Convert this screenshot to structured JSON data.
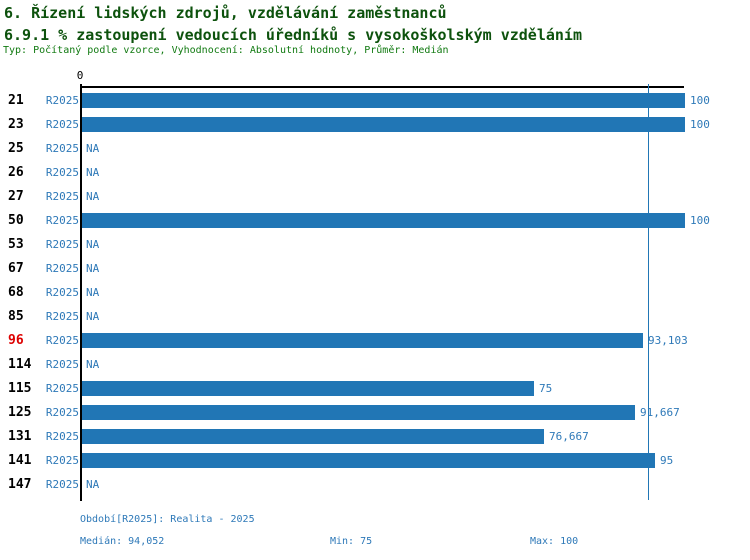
{
  "header": {
    "title1": "6. Řízení lidských zdrojů, vzdělávání zaměstnanců",
    "title2": "6.9.1 % zastoupení vedoucích úředníků s vysokoškolským vzděláním",
    "subtitle": "Typ: Počítaný podle vzorce, Vyhodnocení: Absolutní hodnoty, Průměr: Medián"
  },
  "chart_data": {
    "type": "bar",
    "orientation": "horizontal",
    "title": "6.9.1 % zastoupení vedoucích úředníků s vysokoškolským vzděláním",
    "xlim": [
      0,
      100
    ],
    "axis_origin_label": "0",
    "period_label": "R2025",
    "na_label": "NA",
    "median_value": 94.052,
    "min_value": 75,
    "max_value": 100,
    "categories": [
      "21",
      "23",
      "25",
      "26",
      "27",
      "50",
      "53",
      "67",
      "68",
      "85",
      "96",
      "114",
      "115",
      "125",
      "131",
      "141",
      "147"
    ],
    "values": [
      100,
      100,
      null,
      null,
      null,
      100,
      null,
      null,
      null,
      null,
      93.103,
      null,
      75,
      91.667,
      76.667,
      95,
      null
    ],
    "value_labels": [
      "100",
      "100",
      "NA",
      "NA",
      "NA",
      "100",
      "NA",
      "NA",
      "NA",
      "NA",
      "93,103",
      "NA",
      "75",
      "91,667",
      "76,667",
      "95",
      "NA"
    ],
    "highlighted_category": "96",
    "footer": {
      "period": "Období[R2025]: Realita - 2025",
      "median": "Medián: 94,052",
      "min": "Min: 75",
      "max": "Max: 100"
    },
    "colors": {
      "bar": "#2176b5",
      "blue_text": "#2e79b8",
      "highlight_text": "#dd0000",
      "title_text": "#0d520d",
      "subtitle_text": "#117a11",
      "axis": "#000000"
    }
  }
}
